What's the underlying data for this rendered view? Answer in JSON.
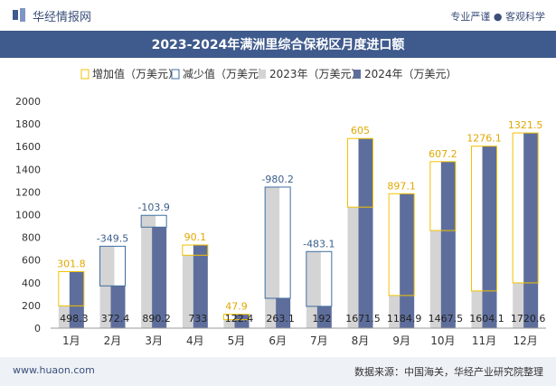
{
  "header": {
    "brand": "华经情报网",
    "tagline": "专业严谨 ● 客观科学"
  },
  "footer": {
    "website": "www.huaon.com",
    "source": "数据来源：中国海关，华经产业研究院整理"
  },
  "colors": {
    "title_bg": "#3f5a8c",
    "increase": "#f2c200",
    "decrease": "#3f6ea0",
    "series_2023": "#d4d4d4",
    "series_2024": "#5e6e9c",
    "increase_label": "#e0a800",
    "decrease_label": "#3a5f8c"
  },
  "chart_data": {
    "type": "bar",
    "title": "2023-2024年满洲里综合保税区月度进口额",
    "categories": [
      "1月",
      "2月",
      "3月",
      "4月",
      "5月",
      "6月",
      "7月",
      "8月",
      "9月",
      "10月",
      "11月",
      "12月"
    ],
    "ylim": [
      0,
      2000
    ],
    "yticks": [
      0,
      200,
      400,
      600,
      800,
      1000,
      1200,
      1400,
      1600,
      1800,
      2000
    ],
    "legend_position": "top",
    "grid": false,
    "series": [
      {
        "name": "增加值（万美元）",
        "values": [
          301.8,
          null,
          null,
          90.1,
          47.9,
          null,
          null,
          605,
          897.1,
          607.2,
          1276.1,
          1321.5
        ]
      },
      {
        "name": "减少值（万美元）",
        "values": [
          null,
          -349.5,
          -103.9,
          null,
          null,
          -980.2,
          -483.1,
          null,
          null,
          null,
          null,
          null
        ]
      },
      {
        "name": "2023年（万美元）",
        "values": [
          196.5,
          721.9,
          994.1,
          642.9,
          74.5,
          1243.3,
          675.1,
          1066.5,
          287.8,
          860.3,
          328.0,
          399.1
        ]
      },
      {
        "name": "2024年（万美元）",
        "values": [
          498.3,
          372.4,
          890.2,
          733,
          122.4,
          263.1,
          192,
          1671.5,
          1184.9,
          1467.5,
          1604.1,
          1720.6
        ]
      }
    ],
    "change_labels": [
      "301.8",
      "-349.5",
      "-103.9",
      "90.1",
      "47.9",
      "-980.2",
      "-483.1",
      "605",
      "897.1",
      "607.2",
      "1276.1",
      "1321.5"
    ],
    "value_labels": [
      "498.3",
      "372.4",
      "890.2",
      "733",
      "122.4",
      "263.1",
      "192",
      "1671.5",
      "1184.9",
      "1467.5",
      "1604.1",
      "1720.6"
    ]
  }
}
